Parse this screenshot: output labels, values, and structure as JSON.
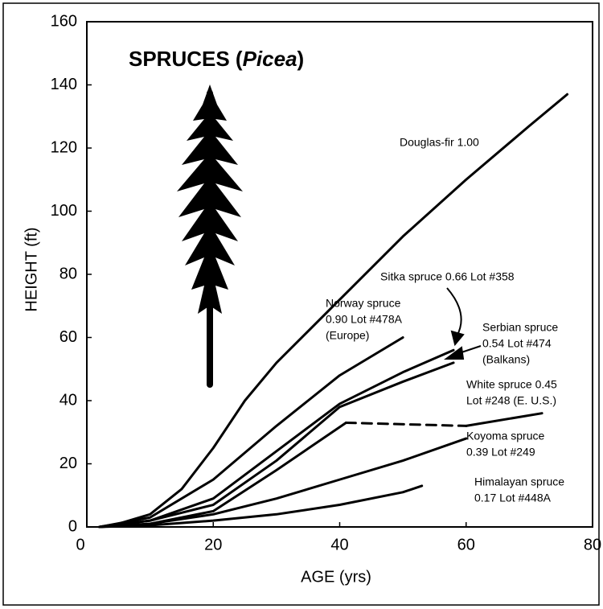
{
  "chart_data": {
    "type": "line",
    "title": [
      "SPRUCES (",
      "Picea",
      ")"
    ],
    "xlabel": "AGE (yrs)",
    "ylabel": "HEIGHT (ft)",
    "xlim": [
      0,
      80
    ],
    "xticks": [
      0,
      20,
      40,
      60,
      80
    ],
    "ylim": [
      0,
      160
    ],
    "yticks": [
      0,
      20,
      40,
      60,
      80,
      100,
      120,
      140,
      160
    ],
    "color": "#000000",
    "series": [
      {
        "label": [
          "Douglas-fir 1.00"
        ],
        "x": [
          2,
          5,
          10,
          15,
          20,
          25,
          30,
          40,
          50,
          60,
          70,
          76
        ],
        "values": [
          0,
          1,
          4,
          12,
          25,
          40,
          52,
          72,
          92,
          110,
          127,
          137
        ]
      },
      {
        "label": [
          "Norway spruce",
          "0.90 Lot #478A",
          "(Europe)"
        ],
        "x": [
          2,
          10,
          20,
          30,
          40,
          50
        ],
        "values": [
          0,
          3,
          15,
          32,
          48,
          60
        ]
      },
      {
        "label": [
          "Sitka spruce 0.66 Lot #358"
        ],
        "x": [
          2,
          10,
          20,
          30,
          40,
          50,
          58
        ],
        "values": [
          0,
          2,
          9,
          24,
          39,
          49,
          56
        ]
      },
      {
        "label": [
          "Serbian spruce",
          "0.54 Lot #474",
          "(Balkans)"
        ],
        "x": [
          2,
          10,
          20,
          30,
          40,
          50,
          58
        ],
        "values": [
          0,
          2,
          7,
          21,
          38,
          46,
          52
        ]
      },
      {
        "label": [
          "White spruce 0.45",
          "Lot #248 (E. U.S.)"
        ],
        "x": [
          2,
          10,
          20,
          30,
          41
        ],
        "values": [
          0,
          1,
          5,
          18,
          33
        ]
      },
      {
        "dashed": true,
        "x": [
          41,
          60
        ],
        "values": [
          33,
          32
        ]
      },
      {
        "x": [
          60,
          72
        ],
        "values": [
          32,
          36
        ]
      },
      {
        "label": [
          "Koyoma spruce",
          "0.39 Lot #249"
        ],
        "x": [
          2,
          10,
          20,
          30,
          40,
          50,
          60
        ],
        "values": [
          0,
          1,
          4,
          9,
          15,
          21,
          28
        ]
      },
      {
        "label": [
          "Himalayan spruce",
          "0.17 Lot #448A"
        ],
        "x": [
          2,
          10,
          20,
          30,
          40,
          50,
          53
        ],
        "values": [
          0,
          0.5,
          2,
          4,
          7,
          11,
          13
        ]
      }
    ]
  }
}
